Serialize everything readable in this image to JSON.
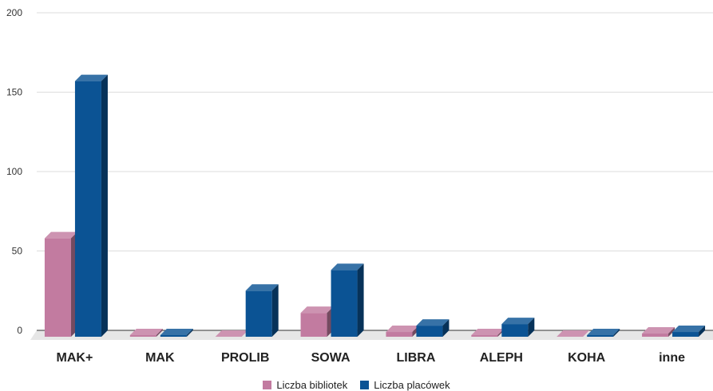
{
  "chart_data": {
    "type": "bar",
    "categories": [
      "MAK+",
      "MAK",
      "PROLIB",
      "SOWA",
      "LIBRA",
      "ALEPH",
      "KOHA",
      "inne"
    ],
    "series": [
      {
        "name": "Liczba bibliotek",
        "color": "#c27ba0",
        "values": [
          62,
          1,
          0,
          15,
          3,
          1,
          0,
          2
        ]
      },
      {
        "name": "Liczba placówek",
        "color": "#0b5394",
        "values": [
          161,
          1,
          29,
          42,
          7,
          8,
          1,
          3
        ]
      }
    ],
    "yticks": [
      "0",
      "50",
      "100",
      "150",
      "200"
    ],
    "ylim": [
      0,
      200
    ],
    "grid": true,
    "legend_position": "bottom",
    "title": "",
    "xlabel": "",
    "ylabel": ""
  }
}
